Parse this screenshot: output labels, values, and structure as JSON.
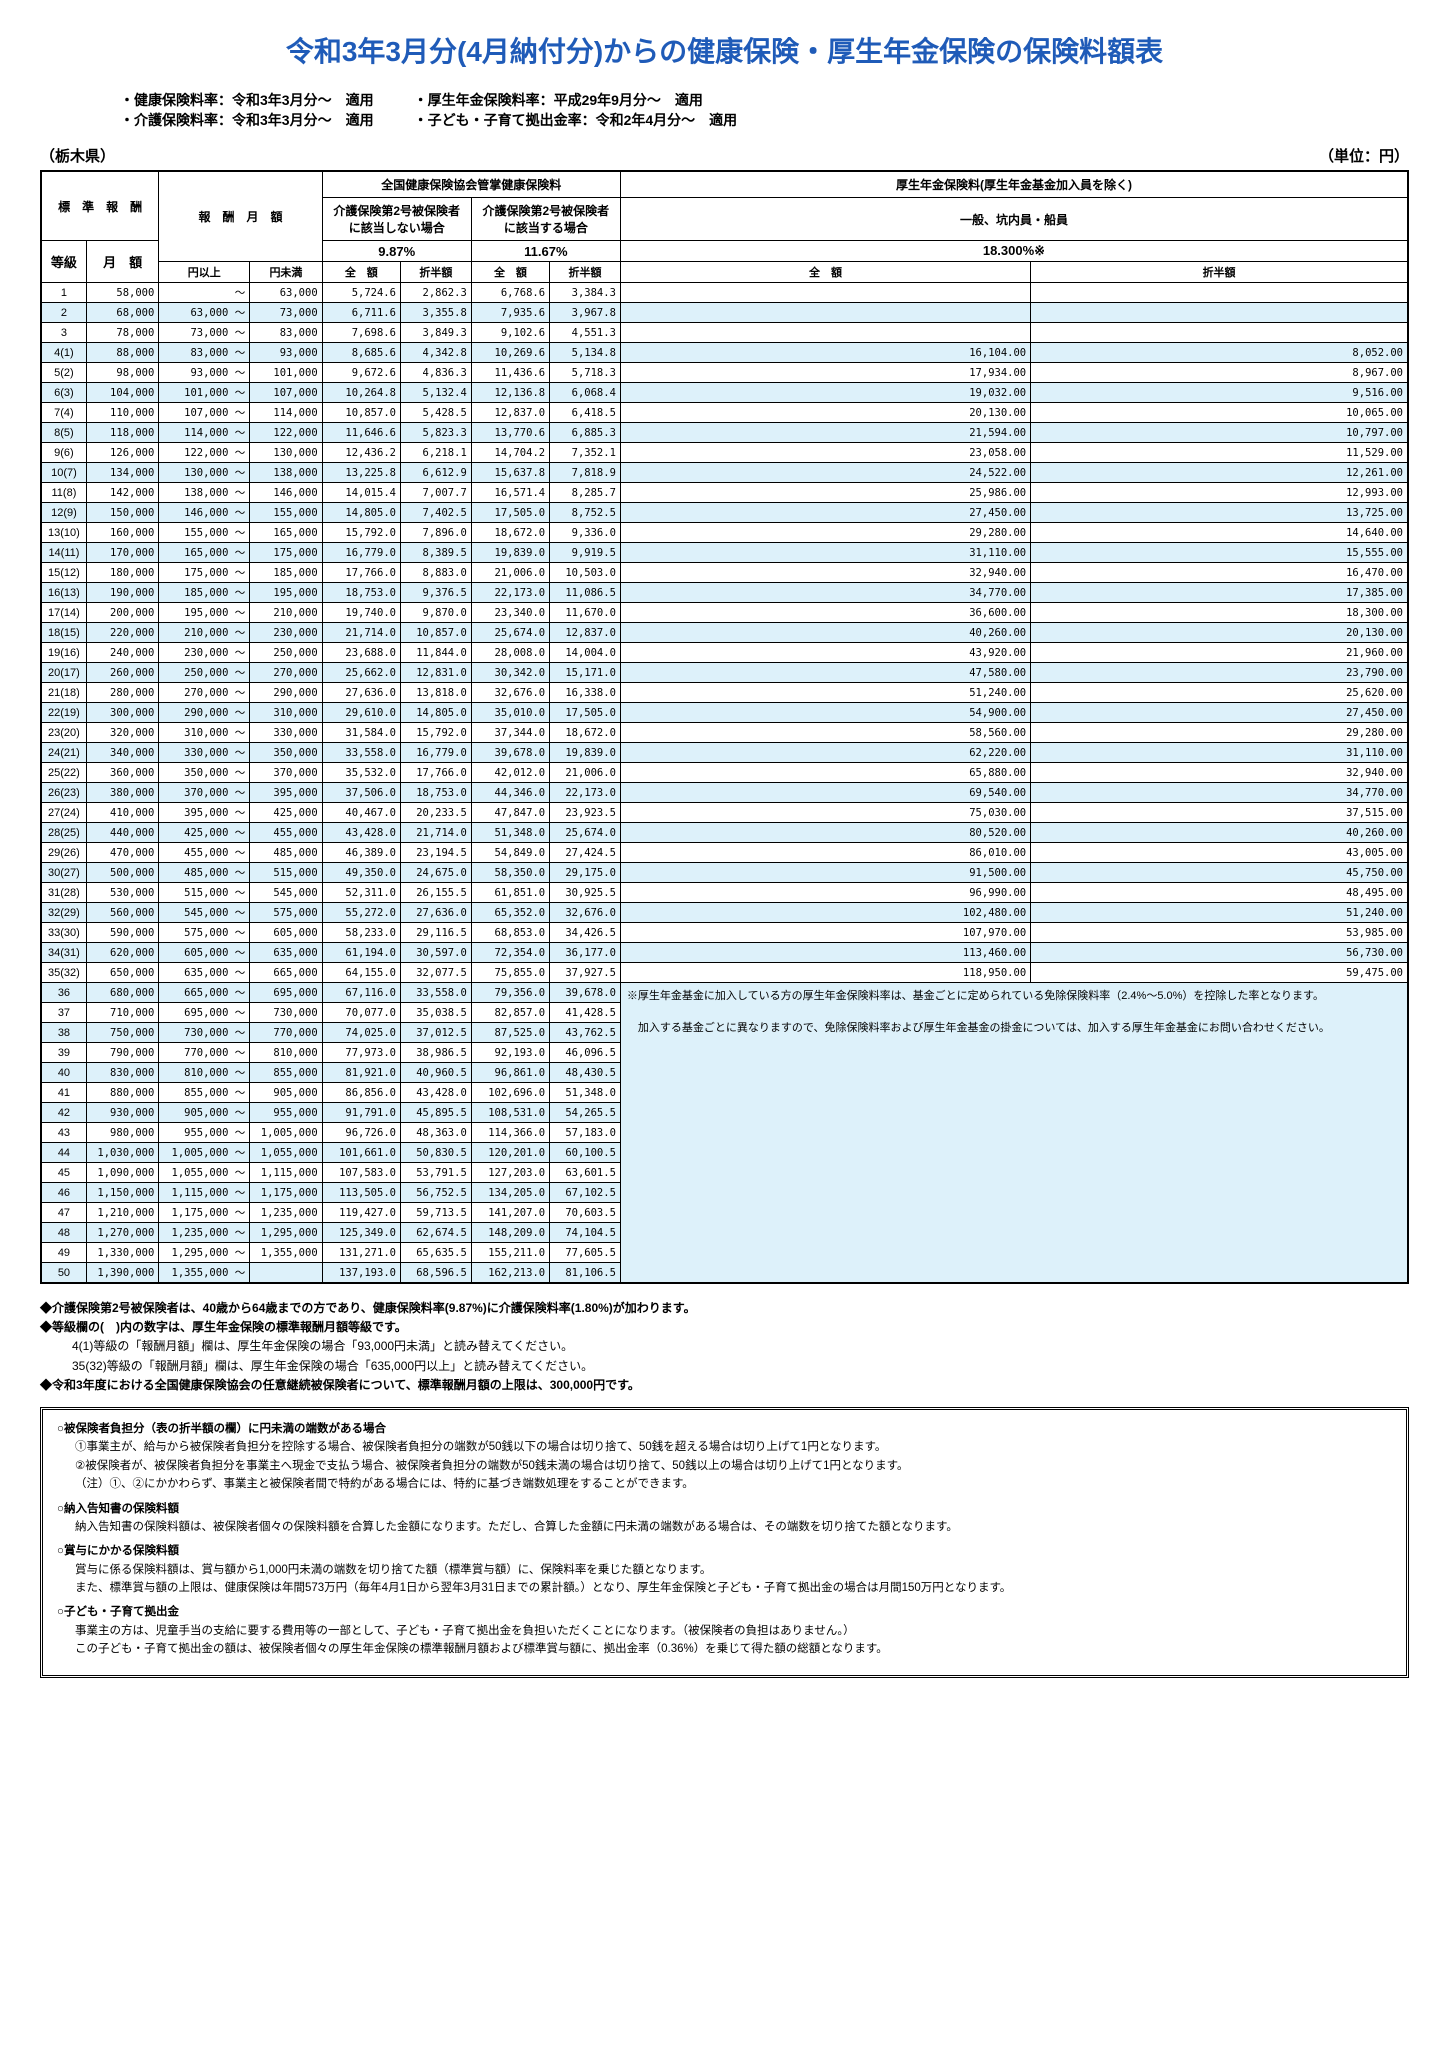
{
  "title": "令和3年3月分(4月納付分)からの健康保険・厚生年金保険の保険料額表",
  "info": {
    "l1": "・健康保険料率：令和3年3月分〜　適用",
    "r1": "・厚生年金保険料率：平成29年9月分〜　適用",
    "l2": "・介護保険料率：令和3年3月分〜　適用",
    "r2": "・子ども・子育て拠出金率：令和2年4月分〜　適用"
  },
  "prefecture": "（栃木県）",
  "unit": "（単位：円）",
  "headers": {
    "hyojun": "標　準　報　酬",
    "getsugaku_range": "報　酬　月　額",
    "kenpo": "全国健康保険協会管掌健康保険料",
    "kousei": "厚生年金保険料(厚生年金基金加入員を除く)",
    "kaigo_no": "介護保険第2号被保険者\nに該当しない場合",
    "kaigo_yes": "介護保険第2号被保険者\nに該当する場合",
    "ippan": "一般、坑内員・船員",
    "rate1": "9.87%",
    "rate2": "11.67%",
    "rate3": "18.300%※",
    "toukyu": "等級",
    "getsugaku": "月　額",
    "zengaku": "全　額",
    "hanbun": "折半額",
    "en_ijo": "円以上",
    "en_miman": "円未満"
  },
  "rows": [
    {
      "g": "1",
      "m": "58,000",
      "lo": "",
      "hi": "63,000",
      "a1": "5,724.6",
      "a2": "2,862.3",
      "b1": "6,768.6",
      "b2": "3,384.3",
      "c1": "",
      "c2": ""
    },
    {
      "g": "2",
      "m": "68,000",
      "lo": "63,000",
      "hi": "73,000",
      "a1": "6,711.6",
      "a2": "3,355.8",
      "b1": "7,935.6",
      "b2": "3,967.8",
      "c1": "",
      "c2": ""
    },
    {
      "g": "3",
      "m": "78,000",
      "lo": "73,000",
      "hi": "83,000",
      "a1": "7,698.6",
      "a2": "3,849.3",
      "b1": "9,102.6",
      "b2": "4,551.3",
      "c1": "",
      "c2": ""
    },
    {
      "g": "4(1)",
      "m": "88,000",
      "lo": "83,000",
      "hi": "93,000",
      "a1": "8,685.6",
      "a2": "4,342.8",
      "b1": "10,269.6",
      "b2": "5,134.8",
      "c1": "16,104.00",
      "c2": "8,052.00"
    },
    {
      "g": "5(2)",
      "m": "98,000",
      "lo": "93,000",
      "hi": "101,000",
      "a1": "9,672.6",
      "a2": "4,836.3",
      "b1": "11,436.6",
      "b2": "5,718.3",
      "c1": "17,934.00",
      "c2": "8,967.00"
    },
    {
      "g": "6(3)",
      "m": "104,000",
      "lo": "101,000",
      "hi": "107,000",
      "a1": "10,264.8",
      "a2": "5,132.4",
      "b1": "12,136.8",
      "b2": "6,068.4",
      "c1": "19,032.00",
      "c2": "9,516.00"
    },
    {
      "g": "7(4)",
      "m": "110,000",
      "lo": "107,000",
      "hi": "114,000",
      "a1": "10,857.0",
      "a2": "5,428.5",
      "b1": "12,837.0",
      "b2": "6,418.5",
      "c1": "20,130.00",
      "c2": "10,065.00"
    },
    {
      "g": "8(5)",
      "m": "118,000",
      "lo": "114,000",
      "hi": "122,000",
      "a1": "11,646.6",
      "a2": "5,823.3",
      "b1": "13,770.6",
      "b2": "6,885.3",
      "c1": "21,594.00",
      "c2": "10,797.00"
    },
    {
      "g": "9(6)",
      "m": "126,000",
      "lo": "122,000",
      "hi": "130,000",
      "a1": "12,436.2",
      "a2": "6,218.1",
      "b1": "14,704.2",
      "b2": "7,352.1",
      "c1": "23,058.00",
      "c2": "11,529.00"
    },
    {
      "g": "10(7)",
      "m": "134,000",
      "lo": "130,000",
      "hi": "138,000",
      "a1": "13,225.8",
      "a2": "6,612.9",
      "b1": "15,637.8",
      "b2": "7,818.9",
      "c1": "24,522.00",
      "c2": "12,261.00"
    },
    {
      "g": "11(8)",
      "m": "142,000",
      "lo": "138,000",
      "hi": "146,000",
      "a1": "14,015.4",
      "a2": "7,007.7",
      "b1": "16,571.4",
      "b2": "8,285.7",
      "c1": "25,986.00",
      "c2": "12,993.00"
    },
    {
      "g": "12(9)",
      "m": "150,000",
      "lo": "146,000",
      "hi": "155,000",
      "a1": "14,805.0",
      "a2": "7,402.5",
      "b1": "17,505.0",
      "b2": "8,752.5",
      "c1": "27,450.00",
      "c2": "13,725.00"
    },
    {
      "g": "13(10)",
      "m": "160,000",
      "lo": "155,000",
      "hi": "165,000",
      "a1": "15,792.0",
      "a2": "7,896.0",
      "b1": "18,672.0",
      "b2": "9,336.0",
      "c1": "29,280.00",
      "c2": "14,640.00"
    },
    {
      "g": "14(11)",
      "m": "170,000",
      "lo": "165,000",
      "hi": "175,000",
      "a1": "16,779.0",
      "a2": "8,389.5",
      "b1": "19,839.0",
      "b2": "9,919.5",
      "c1": "31,110.00",
      "c2": "15,555.00"
    },
    {
      "g": "15(12)",
      "m": "180,000",
      "lo": "175,000",
      "hi": "185,000",
      "a1": "17,766.0",
      "a2": "8,883.0",
      "b1": "21,006.0",
      "b2": "10,503.0",
      "c1": "32,940.00",
      "c2": "16,470.00"
    },
    {
      "g": "16(13)",
      "m": "190,000",
      "lo": "185,000",
      "hi": "195,000",
      "a1": "18,753.0",
      "a2": "9,376.5",
      "b1": "22,173.0",
      "b2": "11,086.5",
      "c1": "34,770.00",
      "c2": "17,385.00"
    },
    {
      "g": "17(14)",
      "m": "200,000",
      "lo": "195,000",
      "hi": "210,000",
      "a1": "19,740.0",
      "a2": "9,870.0",
      "b1": "23,340.0",
      "b2": "11,670.0",
      "c1": "36,600.00",
      "c2": "18,300.00"
    },
    {
      "g": "18(15)",
      "m": "220,000",
      "lo": "210,000",
      "hi": "230,000",
      "a1": "21,714.0",
      "a2": "10,857.0",
      "b1": "25,674.0",
      "b2": "12,837.0",
      "c1": "40,260.00",
      "c2": "20,130.00"
    },
    {
      "g": "19(16)",
      "m": "240,000",
      "lo": "230,000",
      "hi": "250,000",
      "a1": "23,688.0",
      "a2": "11,844.0",
      "b1": "28,008.0",
      "b2": "14,004.0",
      "c1": "43,920.00",
      "c2": "21,960.00"
    },
    {
      "g": "20(17)",
      "m": "260,000",
      "lo": "250,000",
      "hi": "270,000",
      "a1": "25,662.0",
      "a2": "12,831.0",
      "b1": "30,342.0",
      "b2": "15,171.0",
      "c1": "47,580.00",
      "c2": "23,790.00"
    },
    {
      "g": "21(18)",
      "m": "280,000",
      "lo": "270,000",
      "hi": "290,000",
      "a1": "27,636.0",
      "a2": "13,818.0",
      "b1": "32,676.0",
      "b2": "16,338.0",
      "c1": "51,240.00",
      "c2": "25,620.00"
    },
    {
      "g": "22(19)",
      "m": "300,000",
      "lo": "290,000",
      "hi": "310,000",
      "a1": "29,610.0",
      "a2": "14,805.0",
      "b1": "35,010.0",
      "b2": "17,505.0",
      "c1": "54,900.00",
      "c2": "27,450.00"
    },
    {
      "g": "23(20)",
      "m": "320,000",
      "lo": "310,000",
      "hi": "330,000",
      "a1": "31,584.0",
      "a2": "15,792.0",
      "b1": "37,344.0",
      "b2": "18,672.0",
      "c1": "58,560.00",
      "c2": "29,280.00"
    },
    {
      "g": "24(21)",
      "m": "340,000",
      "lo": "330,000",
      "hi": "350,000",
      "a1": "33,558.0",
      "a2": "16,779.0",
      "b1": "39,678.0",
      "b2": "19,839.0",
      "c1": "62,220.00",
      "c2": "31,110.00"
    },
    {
      "g": "25(22)",
      "m": "360,000",
      "lo": "350,000",
      "hi": "370,000",
      "a1": "35,532.0",
      "a2": "17,766.0",
      "b1": "42,012.0",
      "b2": "21,006.0",
      "c1": "65,880.00",
      "c2": "32,940.00"
    },
    {
      "g": "26(23)",
      "m": "380,000",
      "lo": "370,000",
      "hi": "395,000",
      "a1": "37,506.0",
      "a2": "18,753.0",
      "b1": "44,346.0",
      "b2": "22,173.0",
      "c1": "69,540.00",
      "c2": "34,770.00"
    },
    {
      "g": "27(24)",
      "m": "410,000",
      "lo": "395,000",
      "hi": "425,000",
      "a1": "40,467.0",
      "a2": "20,233.5",
      "b1": "47,847.0",
      "b2": "23,923.5",
      "c1": "75,030.00",
      "c2": "37,515.00"
    },
    {
      "g": "28(25)",
      "m": "440,000",
      "lo": "425,000",
      "hi": "455,000",
      "a1": "43,428.0",
      "a2": "21,714.0",
      "b1": "51,348.0",
      "b2": "25,674.0",
      "c1": "80,520.00",
      "c2": "40,260.00"
    },
    {
      "g": "29(26)",
      "m": "470,000",
      "lo": "455,000",
      "hi": "485,000",
      "a1": "46,389.0",
      "a2": "23,194.5",
      "b1": "54,849.0",
      "b2": "27,424.5",
      "c1": "86,010.00",
      "c2": "43,005.00"
    },
    {
      "g": "30(27)",
      "m": "500,000",
      "lo": "485,000",
      "hi": "515,000",
      "a1": "49,350.0",
      "a2": "24,675.0",
      "b1": "58,350.0",
      "b2": "29,175.0",
      "c1": "91,500.00",
      "c2": "45,750.00"
    },
    {
      "g": "31(28)",
      "m": "530,000",
      "lo": "515,000",
      "hi": "545,000",
      "a1": "52,311.0",
      "a2": "26,155.5",
      "b1": "61,851.0",
      "b2": "30,925.5",
      "c1": "96,990.00",
      "c2": "48,495.00"
    },
    {
      "g": "32(29)",
      "m": "560,000",
      "lo": "545,000",
      "hi": "575,000",
      "a1": "55,272.0",
      "a2": "27,636.0",
      "b1": "65,352.0",
      "b2": "32,676.0",
      "c1": "102,480.00",
      "c2": "51,240.00"
    },
    {
      "g": "33(30)",
      "m": "590,000",
      "lo": "575,000",
      "hi": "605,000",
      "a1": "58,233.0",
      "a2": "29,116.5",
      "b1": "68,853.0",
      "b2": "34,426.5",
      "c1": "107,970.00",
      "c2": "53,985.00"
    },
    {
      "g": "34(31)",
      "m": "620,000",
      "lo": "605,000",
      "hi": "635,000",
      "a1": "61,194.0",
      "a2": "30,597.0",
      "b1": "72,354.0",
      "b2": "36,177.0",
      "c1": "113,460.00",
      "c2": "56,730.00"
    },
    {
      "g": "35(32)",
      "m": "650,000",
      "lo": "635,000",
      "hi": "665,000",
      "a1": "64,155.0",
      "a2": "32,077.5",
      "b1": "75,855.0",
      "b2": "37,927.5",
      "c1": "118,950.00",
      "c2": "59,475.00"
    },
    {
      "g": "36",
      "m": "680,000",
      "lo": "665,000",
      "hi": "695,000",
      "a1": "67,116.0",
      "a2": "33,558.0",
      "b1": "79,356.0",
      "b2": "39,678.0",
      "c1": "",
      "c2": ""
    },
    {
      "g": "37",
      "m": "710,000",
      "lo": "695,000",
      "hi": "730,000",
      "a1": "70,077.0",
      "a2": "35,038.5",
      "b1": "82,857.0",
      "b2": "41,428.5",
      "c1": "",
      "c2": ""
    },
    {
      "g": "38",
      "m": "750,000",
      "lo": "730,000",
      "hi": "770,000",
      "a1": "74,025.0",
      "a2": "37,012.5",
      "b1": "87,525.0",
      "b2": "43,762.5",
      "c1": "",
      "c2": ""
    },
    {
      "g": "39",
      "m": "790,000",
      "lo": "770,000",
      "hi": "810,000",
      "a1": "77,973.0",
      "a2": "38,986.5",
      "b1": "92,193.0",
      "b2": "46,096.5",
      "c1": "",
      "c2": ""
    },
    {
      "g": "40",
      "m": "830,000",
      "lo": "810,000",
      "hi": "855,000",
      "a1": "81,921.0",
      "a2": "40,960.5",
      "b1": "96,861.0",
      "b2": "48,430.5",
      "c1": "",
      "c2": ""
    },
    {
      "g": "41",
      "m": "880,000",
      "lo": "855,000",
      "hi": "905,000",
      "a1": "86,856.0",
      "a2": "43,428.0",
      "b1": "102,696.0",
      "b2": "51,348.0",
      "c1": "",
      "c2": ""
    },
    {
      "g": "42",
      "m": "930,000",
      "lo": "905,000",
      "hi": "955,000",
      "a1": "91,791.0",
      "a2": "45,895.5",
      "b1": "108,531.0",
      "b2": "54,265.5",
      "c1": "",
      "c2": ""
    },
    {
      "g": "43",
      "m": "980,000",
      "lo": "955,000",
      "hi": "1,005,000",
      "a1": "96,726.0",
      "a2": "48,363.0",
      "b1": "114,366.0",
      "b2": "57,183.0",
      "c1": "",
      "c2": ""
    },
    {
      "g": "44",
      "m": "1,030,000",
      "lo": "1,005,000",
      "hi": "1,055,000",
      "a1": "101,661.0",
      "a2": "50,830.5",
      "b1": "120,201.0",
      "b2": "60,100.5",
      "c1": "",
      "c2": ""
    },
    {
      "g": "45",
      "m": "1,090,000",
      "lo": "1,055,000",
      "hi": "1,115,000",
      "a1": "107,583.0",
      "a2": "53,791.5",
      "b1": "127,203.0",
      "b2": "63,601.5",
      "c1": "",
      "c2": ""
    },
    {
      "g": "46",
      "m": "1,150,000",
      "lo": "1,115,000",
      "hi": "1,175,000",
      "a1": "113,505.0",
      "a2": "56,752.5",
      "b1": "134,205.0",
      "b2": "67,102.5",
      "c1": "",
      "c2": ""
    },
    {
      "g": "47",
      "m": "1,210,000",
      "lo": "1,175,000",
      "hi": "1,235,000",
      "a1": "119,427.0",
      "a2": "59,713.5",
      "b1": "141,207.0",
      "b2": "70,603.5",
      "c1": "",
      "c2": ""
    },
    {
      "g": "48",
      "m": "1,270,000",
      "lo": "1,235,000",
      "hi": "1,295,000",
      "a1": "125,349.0",
      "a2": "62,674.5",
      "b1": "148,209.0",
      "b2": "74,104.5",
      "c1": "",
      "c2": ""
    },
    {
      "g": "49",
      "m": "1,330,000",
      "lo": "1,295,000",
      "hi": "1,355,000",
      "a1": "131,271.0",
      "a2": "65,635.5",
      "b1": "155,211.0",
      "b2": "77,605.5",
      "c1": "",
      "c2": ""
    },
    {
      "g": "50",
      "m": "1,390,000",
      "lo": "1,355,000",
      "hi": "",
      "a1": "137,193.0",
      "a2": "68,596.5",
      "b1": "162,213.0",
      "b2": "81,106.5",
      "c1": "",
      "c2": ""
    }
  ],
  "side_note": "※厚生年金基金に加入している方の厚生年金保険料率は、基金ごとに定められている免除保険料率（2.4%〜5.0%）を控除した率となります。\n\n　加入する基金ごとに異なりますので、免除保険料率および厚生年金基金の掛金については、加入する厚生年金基金にお問い合わせください。",
  "notes": [
    "◆介護保険第2号被保険者は、40歳から64歳までの方であり、健康保険料率(9.87%)に介護保険料率(1.80%)が加わります。",
    "◆等級欄の(　)内の数字は、厚生年金保険の標準報酬月額等級です。",
    "　4(1)等級の「報酬月額」欄は、厚生年金保険の場合「93,000円未満」と読み替えてください。",
    "　35(32)等級の「報酬月額」欄は、厚生年金保険の場合「635,000円以上」と読み替えてください。",
    "◆令和3年度における全国健康保険協会の任意継続被保険者について、標準報酬月額の上限は、300,000円です。"
  ],
  "box": {
    "s1t": "○被保険者負担分（表の折半額の欄）に円未満の端数がある場合",
    "s1b": "①事業主が、給与から被保険者負担分を控除する場合、被保険者負担分の端数が50銭以下の場合は切り捨て、50銭を超える場合は切り上げて1円となります。\n②被保険者が、被保険者負担分を事業主へ現金で支払う場合、被保険者負担分の端数が50銭未満の場合は切り捨て、50銭以上の場合は切り上げて1円となります。\n（注）①、②にかかわらず、事業主と被保険者間で特約がある場合には、特約に基づき端数処理をすることができます。",
    "s2t": "○納入告知書の保険料額",
    "s2b": "納入告知書の保険料額は、被保険者個々の保険料額を合算した金額になります。ただし、合算した金額に円未満の端数がある場合は、その端数を切り捨てた額となります。",
    "s3t": "○賞与にかかる保険料額",
    "s3b": "賞与に係る保険料額は、賞与額から1,000円未満の端数を切り捨てた額（標準賞与額）に、保険料率を乗じた額となります。\nまた、標準賞与額の上限は、健康保険は年間573万円（毎年4月1日から翌年3月31日までの累計額。）となり、厚生年金保険と子ども・子育て拠出金の場合は月間150万円となります。",
    "s4t": "○子ども・子育て拠出金",
    "s4b": "事業主の方は、児童手当の支給に要する費用等の一部として、子ども・子育て拠出金を負担いただくことになります。（被保険者の負担はありません。）\nこの子ども・子育て拠出金の額は、被保険者個々の厚生年金保険の標準報酬月額および標準賞与額に、拠出金率（0.36%）を乗じて得た額の総額となります。"
  }
}
